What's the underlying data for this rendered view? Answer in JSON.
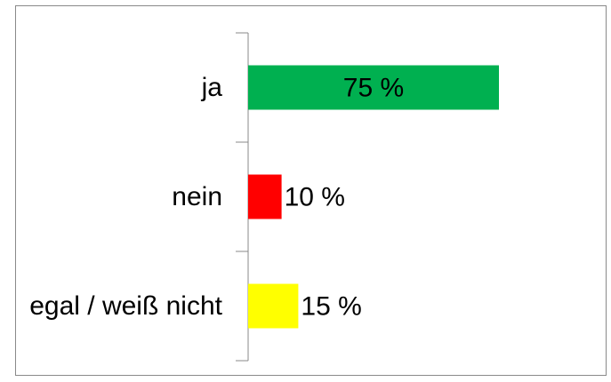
{
  "chart_data": {
    "type": "bar",
    "orientation": "horizontal",
    "categories": [
      "ja",
      "nein",
      "egal / weiß nicht"
    ],
    "values": [
      75,
      10,
      15
    ],
    "value_labels": [
      "75 %",
      "10 %",
      "15 %"
    ],
    "colors": [
      "#00b050",
      "#ff0000",
      "#ffff00"
    ]
  }
}
